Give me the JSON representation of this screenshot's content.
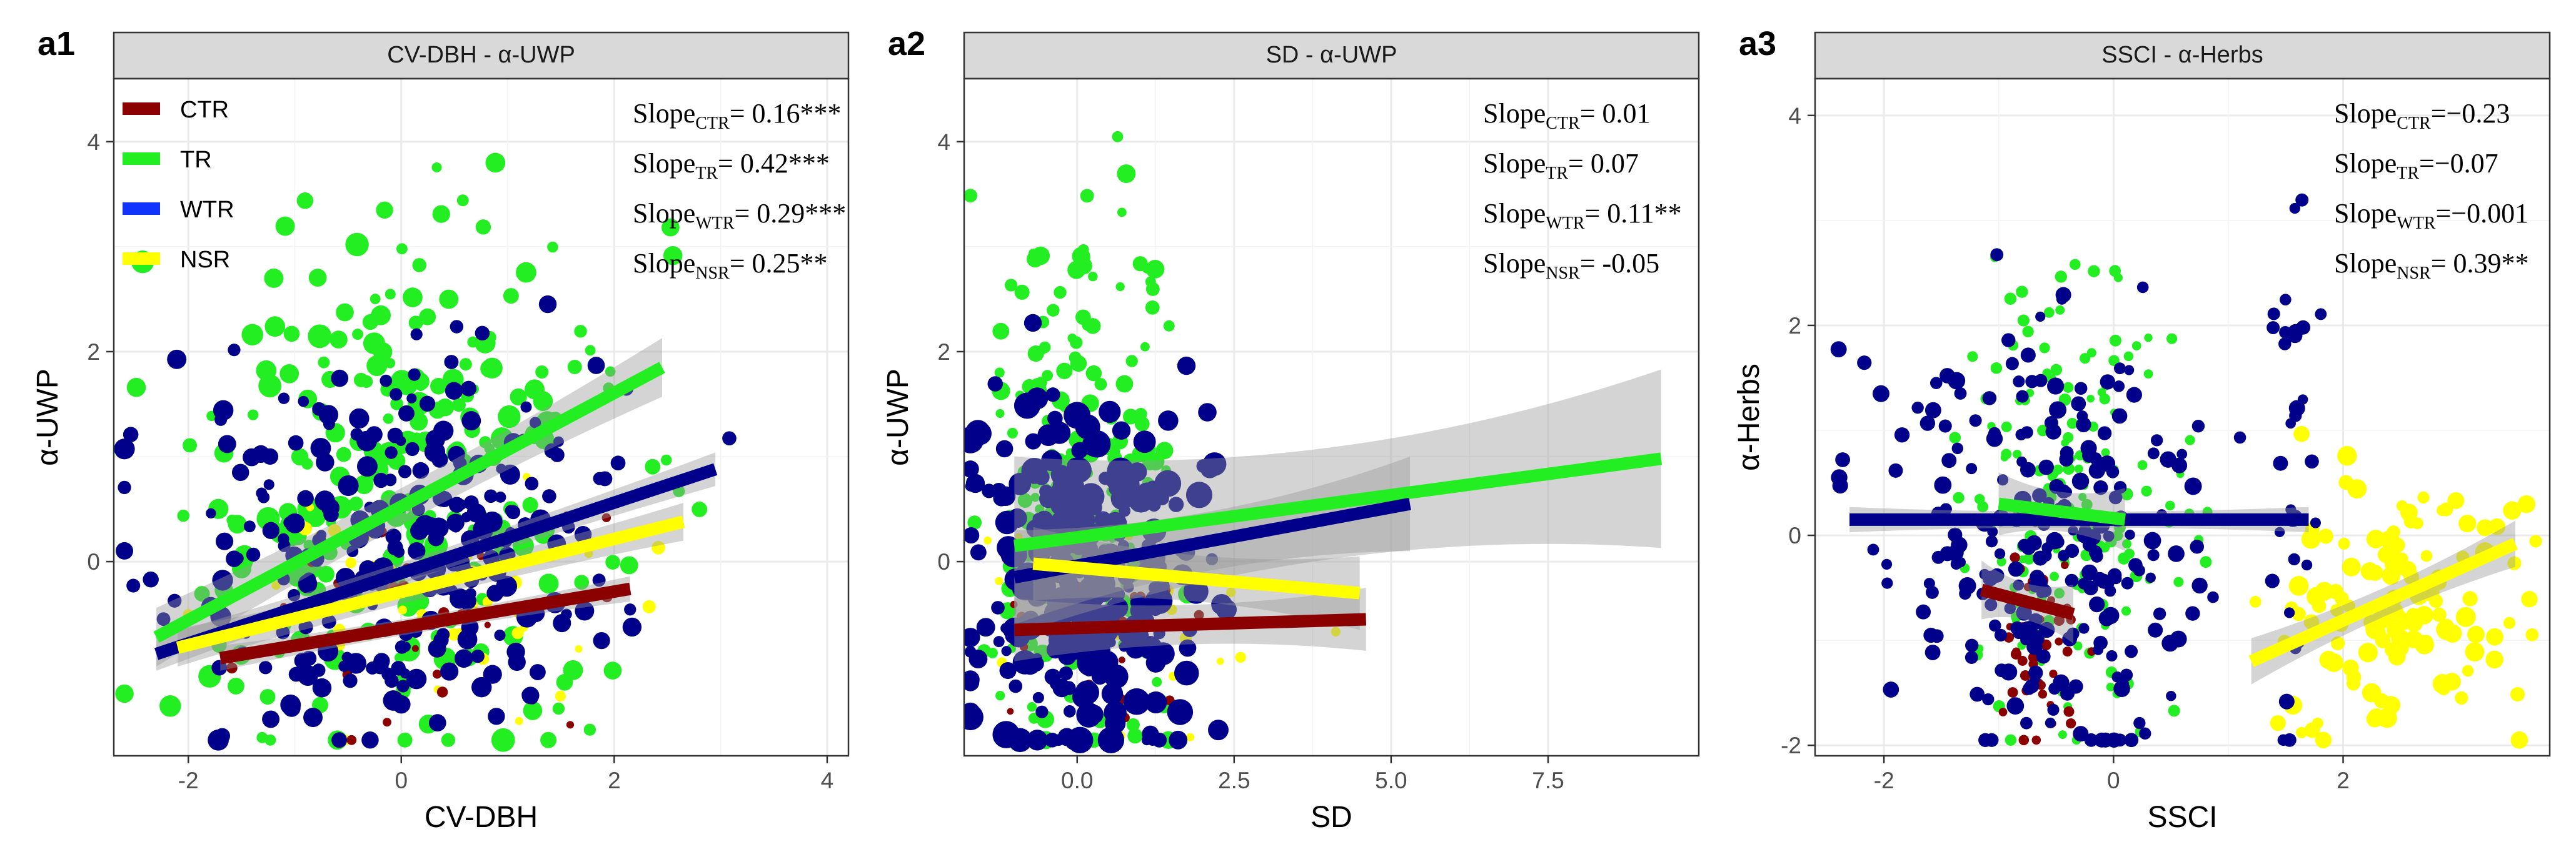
{
  "colors": {
    "CTR": "#8B0000",
    "TR": "#22EE22",
    "WTR": "#1133FF",
    "NSR": "#FFFF00",
    "navy": "#00008B",
    "strip": "#D9D9D9",
    "grid": "#EBEBEB",
    "band": "#999999"
  },
  "legend": {
    "items": [
      {
        "label": "CTR",
        "key": "CTR"
      },
      {
        "label": "TR",
        "key": "TR"
      },
      {
        "label": "WTR",
        "key": "WTR"
      },
      {
        "label": "NSR",
        "key": "NSR"
      }
    ]
  },
  "chart_data": [
    {
      "panel_tag": "a1",
      "type": "scatter",
      "title": "CV-DBH - α-UWP",
      "xlabel": "CV-DBH",
      "ylabel": "α-UWP",
      "xlim": [
        -2.7,
        4.2
      ],
      "ylim": [
        -1.85,
        4.6
      ],
      "xticks": [
        {
          "v": -2,
          "label": "-2"
        },
        {
          "v": 0,
          "label": "0"
        },
        {
          "v": 2,
          "label": "2"
        },
        {
          "v": 4,
          "label": "4"
        }
      ],
      "yticks": [
        {
          "v": 0,
          "label": "0"
        },
        {
          "v": 2,
          "label": "2"
        },
        {
          "v": 4,
          "label": "4"
        }
      ],
      "grid": true,
      "legend_position": "top-left",
      "slopes": [
        {
          "group": "CTR",
          "text": "= 0.16***"
        },
        {
          "group": "TR",
          "text": "= 0.42***"
        },
        {
          "group": "WTR",
          "text": "= 0.29***"
        },
        {
          "group": "NSR",
          "text": "= 0.25**"
        }
      ],
      "series": [
        {
          "name": "TR",
          "key": "TR",
          "x": [
            -2.3,
            2.45
          ],
          "y": [
            -0.72,
            1.85
          ],
          "band": 0.28
        },
        {
          "name": "WTR",
          "key": "navy",
          "x": [
            -2.3,
            2.95
          ],
          "y": [
            -0.88,
            0.88
          ],
          "band": 0.16
        },
        {
          "name": "NSR",
          "key": "NSR",
          "x": [
            -2.1,
            2.65
          ],
          "y": [
            -0.82,
            0.38
          ],
          "band": 0.18
        },
        {
          "name": "CTR",
          "key": "CTR",
          "x": [
            -1.7,
            2.15
          ],
          "y": [
            -0.92,
            -0.26
          ],
          "band": 0.12
        }
      ],
      "clouds": [
        {
          "key": "TR",
          "cx": 0.1,
          "sx": 1.05,
          "cy": 0.8,
          "sy": 1.2,
          "n": 240,
          "rmin": 8,
          "rmax": 19,
          "seed": 11
        },
        {
          "key": "NSR",
          "cx": 0.3,
          "sx": 1.1,
          "cy": -0.5,
          "sy": 0.5,
          "n": 40,
          "rmin": 6,
          "rmax": 11,
          "seed": 17
        },
        {
          "key": "CTR",
          "cx": 0.6,
          "sx": 1.0,
          "cy": -0.6,
          "sy": 0.45,
          "n": 30,
          "rmin": 5,
          "rmax": 9,
          "seed": 23
        },
        {
          "key": "navy",
          "cx": 0.0,
          "sx": 1.05,
          "cy": 0.2,
          "sy": 0.95,
          "n": 270,
          "rmin": 8,
          "rmax": 17,
          "seed": 31
        }
      ]
    },
    {
      "panel_tag": "a2",
      "type": "scatter",
      "title": "SD - α-UWP",
      "xlabel": "SD",
      "ylabel": "α-UWP",
      "xlim": [
        -1.8,
        9.9
      ],
      "ylim": [
        -1.85,
        4.6
      ],
      "xticks": [
        {
          "v": 0,
          "label": "0.0"
        },
        {
          "v": 2.5,
          "label": "2.5"
        },
        {
          "v": 5,
          "label": "5.0"
        },
        {
          "v": 7.5,
          "label": "7.5"
        }
      ],
      "yticks": [
        {
          "v": 0,
          "label": "0"
        },
        {
          "v": 2,
          "label": "2"
        },
        {
          "v": 4,
          "label": "4"
        }
      ],
      "grid": true,
      "slopes": [
        {
          "group": "CTR",
          "text": "=  0.01"
        },
        {
          "group": "TR",
          "text": "=  0.07"
        },
        {
          "group": "WTR",
          "text": "=  0.11**"
        },
        {
          "group": "NSR",
          "text": "= -0.05"
        }
      ],
      "series": [
        {
          "name": "TR",
          "key": "TR",
          "x": [
            -1.0,
            9.3
          ],
          "y": [
            0.15,
            0.98
          ],
          "band": 0.85
        },
        {
          "name": "WTR",
          "key": "navy",
          "x": [
            -1.0,
            5.3
          ],
          "y": [
            -0.15,
            0.55
          ],
          "band": 0.45
        },
        {
          "name": "NSR",
          "key": "NSR",
          "x": [
            -0.7,
            4.5
          ],
          "y": [
            -0.02,
            -0.3
          ],
          "band": 0.35
        },
        {
          "name": "CTR",
          "key": "CTR",
          "x": [
            -1.0,
            4.6
          ],
          "y": [
            -0.65,
            -0.55
          ],
          "band": 0.3
        }
      ],
      "clouds": [
        {
          "key": "TR",
          "cx": 0.0,
          "sx": 0.7,
          "cy": 0.7,
          "sy": 1.3,
          "n": 220,
          "rmin": 7,
          "rmax": 15,
          "seed": 41
        },
        {
          "key": "NSR",
          "cx": 0.6,
          "sx": 1.1,
          "cy": -0.5,
          "sy": 0.5,
          "n": 30,
          "rmin": 5,
          "rmax": 10,
          "seed": 47
        },
        {
          "key": "CTR",
          "cx": 0.2,
          "sx": 0.9,
          "cy": -0.6,
          "sy": 0.5,
          "n": 25,
          "rmin": 5,
          "rmax": 9,
          "seed": 53
        },
        {
          "key": "navy",
          "cx": 0.1,
          "sx": 0.9,
          "cy": -0.2,
          "sy": 0.9,
          "n": 300,
          "rmin": 8,
          "rmax": 22,
          "seed": 59
        }
      ]
    },
    {
      "panel_tag": "a3",
      "type": "scatter",
      "title": "SSCI - α-Herbs",
      "xlabel": "SSCI",
      "ylabel": "α-Herbs",
      "xlim": [
        -2.6,
        3.8
      ],
      "ylim": [
        -2.1,
        4.35
      ],
      "xticks": [
        {
          "v": -2,
          "label": "-2"
        },
        {
          "v": 0,
          "label": "0"
        },
        {
          "v": 2,
          "label": "2"
        }
      ],
      "yticks": [
        {
          "v": -2,
          "label": "-2"
        },
        {
          "v": 0,
          "label": "0"
        },
        {
          "v": 2,
          "label": "2"
        },
        {
          "v": 4,
          "label": "4"
        }
      ],
      "grid": true,
      "slopes": [
        {
          "group": "CTR",
          "text": "=−0.23"
        },
        {
          "group": "TR",
          "text": "=−0.07"
        },
        {
          "group": "WTR",
          "text": "=−0.001"
        },
        {
          "group": "NSR",
          "text": "=  0.39**"
        }
      ],
      "series": [
        {
          "name": "WTR",
          "key": "navy",
          "x": [
            -2.3,
            1.7
          ],
          "y": [
            0.15,
            0.15
          ],
          "band": 0.12
        },
        {
          "name": "TR",
          "key": "TR",
          "x": [
            -1.0,
            0.1
          ],
          "y": [
            0.3,
            0.15
          ],
          "band": 0.3
        },
        {
          "name": "CTR",
          "key": "CTR",
          "x": [
            -1.15,
            -0.35
          ],
          "y": [
            -0.52,
            -0.75
          ],
          "band": 0.28
        },
        {
          "name": "NSR",
          "key": "NSR",
          "x": [
            1.2,
            3.5
          ],
          "y": [
            -1.2,
            -0.08
          ],
          "band": 0.22
        }
      ],
      "clouds": [
        {
          "key": "TR",
          "cx": -0.35,
          "sx": 0.45,
          "cy": 0.4,
          "sy": 1.1,
          "n": 170,
          "rmin": 6,
          "rmax": 10,
          "seed": 61
        },
        {
          "key": "CTR",
          "cx": -0.7,
          "sx": 0.2,
          "cy": -1.1,
          "sy": 0.45,
          "n": 45,
          "rmin": 6,
          "rmax": 9,
          "seed": 67
        },
        {
          "key": "NSR",
          "cx": 2.5,
          "sx": 0.5,
          "cy": -0.55,
          "sy": 0.6,
          "n": 130,
          "rmin": 9,
          "rmax": 16,
          "seed": 71
        },
        {
          "key": "navy",
          "cx": -0.6,
          "sx": 0.7,
          "cy": 0.05,
          "sy": 1.0,
          "n": 240,
          "rmin": 8,
          "rmax": 14,
          "seed": 73
        },
        {
          "key": "navy",
          "cx": 1.6,
          "sx": 0.1,
          "cy": 0.5,
          "sy": 1.3,
          "n": 30,
          "rmin": 8,
          "rmax": 13,
          "seed": 79
        }
      ]
    }
  ]
}
